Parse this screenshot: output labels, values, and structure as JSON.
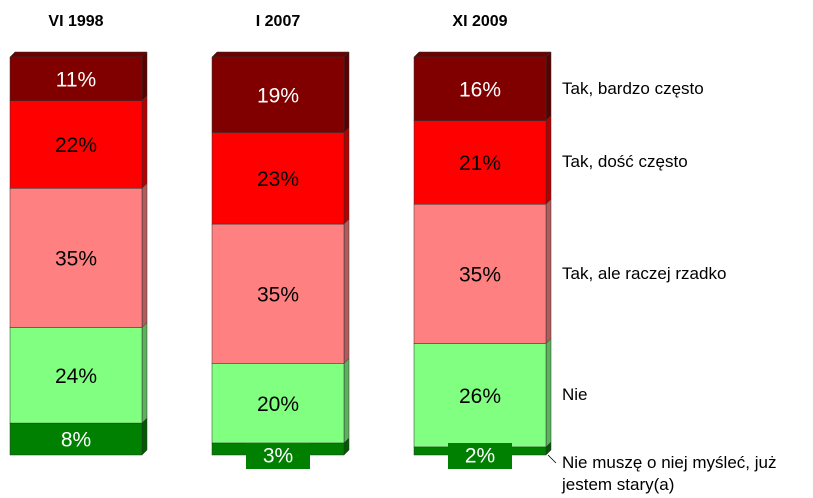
{
  "chart_data": {
    "type": "stacked_bar",
    "categories": [
      "VI 1998",
      "I 2007",
      "XI 2009"
    ],
    "series": [
      {
        "name": "Tak, bardzo często",
        "color": "#800000",
        "values": [
          11,
          19,
          16
        ],
        "value_labels": [
          "11%",
          "19%",
          "16%"
        ]
      },
      {
        "name": "Tak, dość często",
        "color": "#ff0000",
        "values": [
          22,
          23,
          21
        ],
        "value_labels": [
          "22%",
          "23%",
          "21%"
        ]
      },
      {
        "name": "Tak, ale raczej rzadko",
        "color": "#ff8080",
        "values": [
          35,
          35,
          35
        ],
        "value_labels": [
          "35%",
          "35%",
          "35%"
        ]
      },
      {
        "name": "Nie",
        "color": "#80ff80",
        "values": [
          24,
          20,
          26
        ],
        "value_labels": [
          "24%",
          "20%",
          "26%"
        ]
      },
      {
        "name": "Nie muszę o niej myśleć, już jestem stary(a)",
        "color": "#008000",
        "values": [
          8,
          3,
          2
        ],
        "value_labels": [
          "8%",
          "3%",
          "2%"
        ]
      }
    ]
  }
}
